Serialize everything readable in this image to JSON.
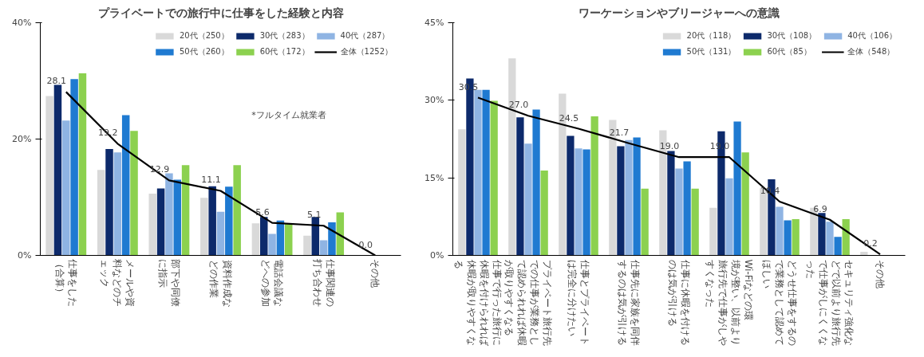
{
  "chart_data": [
    {
      "type": "bar",
      "title": "プライベートでの旅行中に仕事をした経験と内容",
      "categories": [
        "仕事をした（合算）",
        "メールや資料などのチェック",
        "部下や同僚に指示",
        "資料作成などの作業",
        "電話会議などへの参加",
        "仕事関連の打ち合わせ",
        "その他"
      ],
      "series": [
        {
          "name": "20代（250）",
          "color": "#d9d9d9",
          "values": [
            27.4,
            14.7,
            10.6,
            9.9,
            5.5,
            3.4,
            0
          ]
        },
        {
          "name": "30代（283）",
          "color": "#0d2a6b",
          "values": [
            29.3,
            18.3,
            11.5,
            11.9,
            6.6,
            6.6,
            0
          ]
        },
        {
          "name": "40代（287）",
          "color": "#8fb4e3",
          "values": [
            23.2,
            17.7,
            14.1,
            7.5,
            3.7,
            2.6,
            0
          ]
        },
        {
          "name": "50代（260）",
          "color": "#1f7ad1",
          "values": [
            30.3,
            24.1,
            13.0,
            11.8,
            6.0,
            5.7,
            0
          ]
        },
        {
          "name": "60代（172）",
          "color": "#8cd14f",
          "values": [
            31.3,
            21.4,
            15.5,
            15.5,
            5.5,
            7.4,
            0
          ]
        },
        {
          "name": "全体（1252）",
          "type": "line",
          "color": "#000000",
          "values": [
            28.1,
            19.2,
            12.9,
            11.1,
            5.6,
            5.1,
            0.0
          ],
          "value_labels": [
            "28.1",
            "19.2",
            "12.9",
            "11.1",
            "5.6",
            "5.1",
            "0.0"
          ]
        }
      ],
      "ylim": [
        0,
        40
      ],
      "yticks": [
        {
          "value": 0,
          "label": "0%"
        },
        {
          "value": 20,
          "label": "20%"
        },
        {
          "value": 40,
          "label": "40%"
        }
      ],
      "annotations": [
        "*フルタイム就業者"
      ],
      "legend": "top right",
      "grid": false
    },
    {
      "type": "bar",
      "title": "ワーケーションやブリージャーへの意識",
      "categories": [
        "仕事で行った旅行に休暇を付けられれば休暇が取りやすくなる",
        "プライベート旅行先での仕事が業務として認められれば休暇が取りやすくなる",
        "仕事とプライベートは完全に分けたい",
        "仕事先に家族を同伴するのは気が引ける",
        "仕事に休暇を付けるのは気が引ける",
        "Wi-Fiなどの環境が整い、以前より旅行先で仕事がしやすくなった",
        "どうせ仕事をするので業務として認めてほしい",
        "セキュリティ強化などで以前より旅行先で仕事がしにくくなった",
        "その他"
      ],
      "series": [
        {
          "name": "20代（118）",
          "color": "#d9d9d9",
          "values": [
            24.4,
            38.1,
            31.3,
            26.2,
            24.2,
            9.2,
            13.0,
            9.2,
            0.7
          ]
        },
        {
          "name": "30代（108）",
          "color": "#0d2a6b",
          "values": [
            34.2,
            26.7,
            23.1,
            21.1,
            20.2,
            24.0,
            14.7,
            8.2,
            0
          ]
        },
        {
          "name": "40代（106）",
          "color": "#8fb4e3",
          "values": [
            32.0,
            21.6,
            20.7,
            22.3,
            16.8,
            14.9,
            9.4,
            6.5,
            0
          ]
        },
        {
          "name": "50代（131）",
          "color": "#1f7ad1",
          "values": [
            32.0,
            28.2,
            20.5,
            22.8,
            18.2,
            25.9,
            6.8,
            3.6,
            0
          ]
        },
        {
          "name": "60代（85）",
          "color": "#8cd14f",
          "values": [
            29.9,
            16.4,
            26.9,
            12.9,
            12.9,
            19.9,
            7.0,
            7.0,
            0
          ]
        },
        {
          "name": "全体（548）",
          "type": "line",
          "color": "#000000",
          "values": [
            30.5,
            27.0,
            24.5,
            21.7,
            19.0,
            19.0,
            10.4,
            6.9,
            0.2
          ],
          "value_labels": [
            "30.5",
            "27.0",
            "24.5",
            "21.7",
            "19.0",
            "19.0",
            "10.4",
            "6.9",
            "0.2"
          ]
        }
      ],
      "ylim": [
        0,
        45
      ],
      "yticks": [
        {
          "value": 0,
          "label": "0%"
        },
        {
          "value": 15,
          "label": "15%"
        },
        {
          "value": 30,
          "label": "30%"
        },
        {
          "value": 45,
          "label": "45%"
        }
      ],
      "legend": "top right",
      "grid": false
    }
  ]
}
